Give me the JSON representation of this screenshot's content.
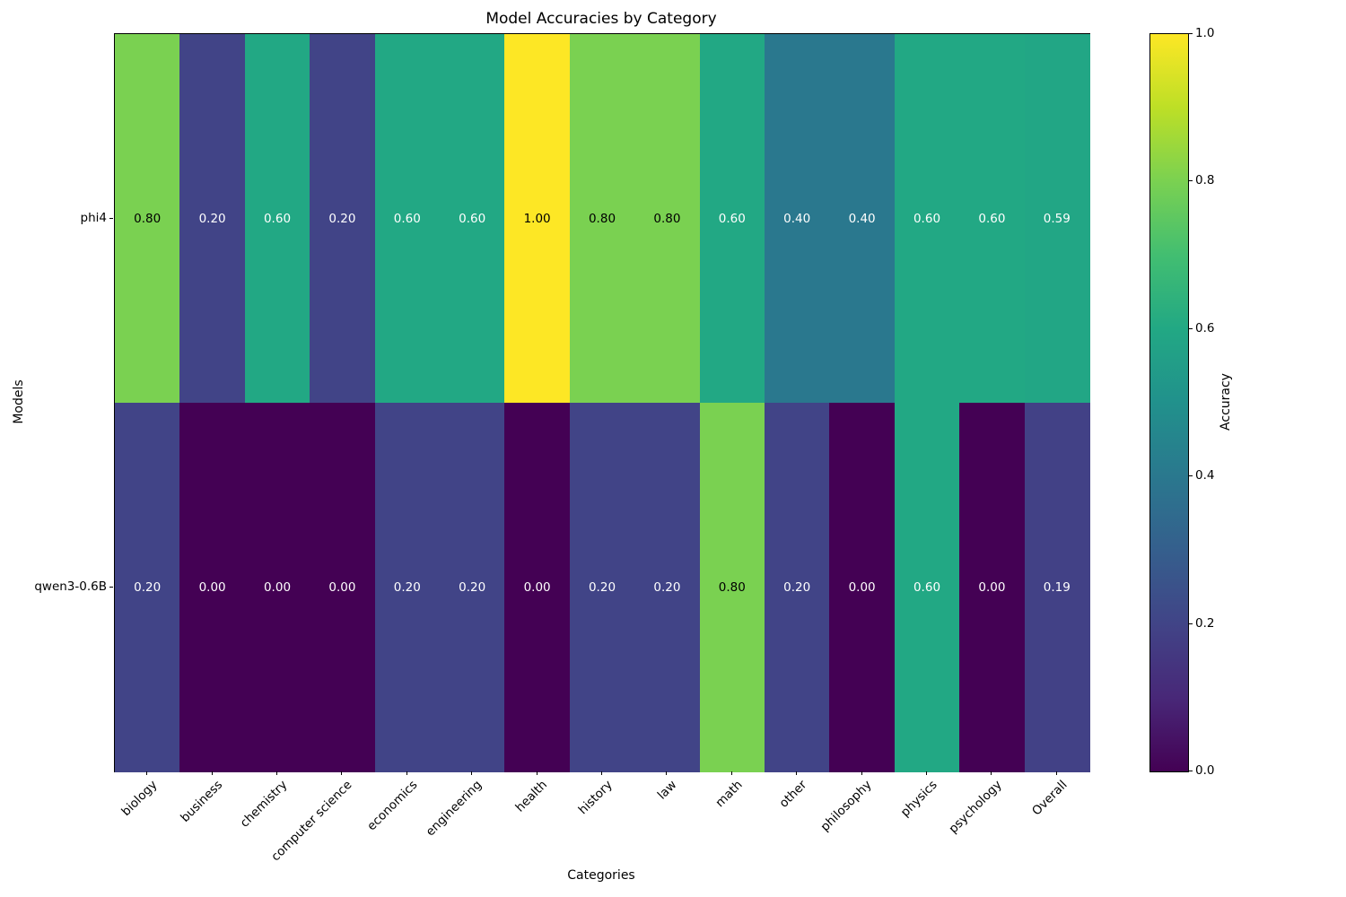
{
  "chart_data": {
    "type": "heatmap",
    "title": "Model Accuracies by Category",
    "xlabel": "Categories",
    "ylabel": "Models",
    "categories": [
      "biology",
      "business",
      "chemistry",
      "computer science",
      "economics",
      "engineering",
      "health",
      "history",
      "law",
      "math",
      "other",
      "philosophy",
      "physics",
      "psychology",
      "Overall"
    ],
    "models": [
      "phi4",
      "qwen3-0.6B"
    ],
    "series": [
      {
        "name": "phi4",
        "values": [
          0.8,
          0.2,
          0.6,
          0.2,
          0.6,
          0.6,
          1.0,
          0.8,
          0.8,
          0.6,
          0.4,
          0.4,
          0.6,
          0.6,
          0.59
        ]
      },
      {
        "name": "qwen3-0.6B",
        "values": [
          0.2,
          0.0,
          0.0,
          0.0,
          0.2,
          0.2,
          0.0,
          0.2,
          0.2,
          0.8,
          0.2,
          0.0,
          0.6,
          0.0,
          0.19
        ]
      }
    ],
    "colormap": "viridis",
    "vmin": 0.0,
    "vmax": 1.0,
    "grid": false,
    "annotation_decimals": 2,
    "annotation_text_colors": {
      "on_dark": "#ffffff",
      "on_light": "#000000"
    },
    "colorbar": {
      "label": "Accuracy",
      "ticks": [
        "0.0",
        "0.2",
        "0.4",
        "0.6",
        "0.8",
        "1.0"
      ],
      "position": "right"
    }
  }
}
